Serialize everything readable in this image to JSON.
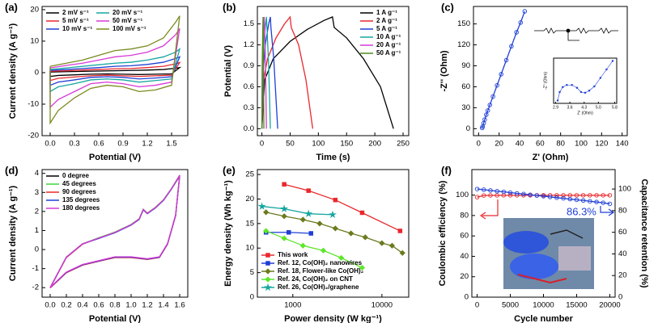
{
  "chart_data": [
    {
      "type": "line",
      "panel_label": "(a)",
      "xlabel": "Potential (V)",
      "ylabel": "Current density (A g⁻¹)",
      "xlim": [
        -0.1,
        1.7
      ],
      "xticks": [
        {
          "value": 0,
          "label": "0.0"
        },
        0.3,
        0.6,
        0.9,
        1.2,
        1.5
      ],
      "ylim": [
        -20,
        21
      ],
      "yticks": [
        -20,
        -10,
        0,
        10,
        20
      ],
      "legend": "upper left",
      "x": [
        0,
        0.2,
        0.4,
        0.6,
        0.8,
        1.0,
        1.2,
        1.4,
        1.55,
        1.6,
        1.5,
        1.3,
        1.1,
        0.9,
        0.7,
        0.5,
        0.3,
        0.1,
        0,
        0
      ],
      "series": [
        {
          "name": "2 mV s⁻¹",
          "color": "#000000",
          "values": [
            0.2,
            0.3,
            0.4,
            0.5,
            0.6,
            0.7,
            0.8,
            1,
            1.4,
            1.6,
            -0.4,
            -0.5,
            -0.6,
            -0.5,
            -0.4,
            -0.5,
            -0.7,
            -0.9,
            -1.2,
            0.2
          ]
        },
        {
          "name": "5 mV s⁻¹",
          "color": "#e8282d",
          "values": [
            0.4,
            0.6,
            0.8,
            1,
            1.2,
            1.3,
            1.6,
            2,
            2.8,
            3.2,
            -0.8,
            -1,
            -1.2,
            -1,
            -0.8,
            -1,
            -1.4,
            -1.8,
            -2.5,
            0.4
          ]
        },
        {
          "name": "10 mV s⁻¹",
          "color": "#1f3fd6",
          "values": [
            0.7,
            1,
            1.3,
            1.6,
            2,
            2.2,
            2.6,
            3.3,
            4.5,
            5,
            -1.3,
            -1.7,
            -2,
            -1.5,
            -1.3,
            -1.5,
            -2.3,
            -3,
            -4,
            0.7
          ]
        },
        {
          "name": "20 mV s⁻¹",
          "color": "#16a6a0",
          "values": [
            1,
            1.5,
            2,
            2.5,
            3,
            3.3,
            4,
            5,
            6.5,
            7.5,
            -2,
            -2.5,
            -3,
            -2.3,
            -2,
            -2.3,
            -3.5,
            -4.5,
            -6,
            1
          ]
        },
        {
          "name": "50 mV s⁻¹",
          "color": "#d63ad6",
          "values": [
            1.5,
            2.3,
            3,
            4,
            5,
            5.5,
            6.5,
            8.5,
            12,
            14,
            -3,
            -4,
            -4.5,
            -3.5,
            -3,
            -3.5,
            -6,
            -8.5,
            -11,
            1.5
          ]
        },
        {
          "name": "100 mV s⁻¹",
          "color": "#7a8a1e",
          "values": [
            2,
            3,
            4,
            5.5,
            7,
            7.5,
            8.5,
            11,
            16,
            18,
            -4,
            -5.5,
            -6,
            -4.5,
            -4,
            -5,
            -8,
            -12,
            -16,
            2
          ]
        }
      ]
    },
    {
      "type": "line",
      "panel_label": "(b)",
      "xlabel": "Time (s)",
      "ylabel": "Potential (V)",
      "xlim": [
        -8,
        260
      ],
      "xticks": [
        0,
        50,
        100,
        150,
        200,
        250
      ],
      "ylim": [
        -0.1,
        1.75
      ],
      "yticks": [
        {
          "value": 0,
          "label": "0.0"
        },
        0.3,
        0.6,
        0.9,
        1.2,
        1.5
      ],
      "legend": "upper right",
      "series": [
        {
          "name": "1 A g⁻¹",
          "color": "#000000",
          "x": [
            0,
            5,
            20,
            50,
            80,
            110,
            125,
            128,
            150,
            180,
            210,
            233
          ],
          "values": [
            0,
            0.7,
            1.0,
            1.25,
            1.42,
            1.55,
            1.6,
            1.45,
            1.3,
            1.0,
            0.6,
            0
          ]
        },
        {
          "name": "2 A g⁻¹",
          "color": "#e8282d",
          "x": [
            0,
            3,
            10,
            25,
            40,
            50,
            52,
            65,
            78,
            90
          ],
          "values": [
            0,
            0.7,
            1.0,
            1.3,
            1.5,
            1.6,
            1.45,
            1.2,
            0.7,
            0
          ]
        },
        {
          "name": "5 A g⁻¹",
          "color": "#1f3fd6",
          "x": [
            0,
            2,
            6,
            12,
            15,
            16,
            21,
            28
          ],
          "values": [
            0,
            0.8,
            1.2,
            1.5,
            1.6,
            1.45,
            1.0,
            0
          ]
        },
        {
          "name": "10 A g⁻¹",
          "color": "#16a6a0",
          "x": [
            0,
            1,
            4,
            8,
            9,
            12,
            15
          ],
          "values": [
            0,
            0.8,
            1.3,
            1.6,
            1.45,
            0.9,
            0
          ]
        },
        {
          "name": "20 A g⁻¹",
          "color": "#d63ad6",
          "x": [
            0,
            1,
            3,
            4,
            5,
            6.5,
            8
          ],
          "values": [
            0,
            0.9,
            1.4,
            1.6,
            1.45,
            0.9,
            0
          ]
        },
        {
          "name": "50 A g⁻¹",
          "color": "#4f8a1e",
          "x": [
            0,
            0.5,
            1.5,
            2,
            2.3,
            3,
            3.5
          ],
          "values": [
            0,
            0.9,
            1.4,
            1.6,
            1.45,
            0.8,
            0
          ]
        }
      ]
    },
    {
      "type": "line",
      "panel_label": "(c)",
      "xlabel": "Z' (Ohm)",
      "ylabel": "-Z'' (Ohm)",
      "xlim": [
        -5,
        145
      ],
      "xticks": [
        0,
        20,
        40,
        60,
        80,
        100,
        120,
        140
      ],
      "ylim": [
        -10,
        175
      ],
      "yticks": [
        0,
        30,
        60,
        90,
        120,
        150
      ],
      "series": [
        {
          "color": "#1f3fd6",
          "marker": "circle",
          "hollow": true,
          "x": [
            3.5,
            4,
            5,
            6,
            7.5,
            9,
            11,
            14,
            18,
            22,
            27,
            32,
            37,
            41,
            45
          ],
          "values": [
            1,
            3,
            8,
            13,
            20,
            26,
            34,
            46,
            62,
            78,
            98,
            118,
            138,
            152,
            168
          ]
        }
      ]
    },
    {
      "type": "line",
      "panel_label": "(d)",
      "xlabel": "Potential (V)",
      "ylabel": "Current density (A g⁻¹)",
      "xlim": [
        -0.1,
        1.7
      ],
      "xticks": [
        {
          "value": 0,
          "label": "0.0"
        },
        0.2,
        0.4,
        0.6,
        0.8,
        {
          "value": 1,
          "label": "1.0"
        },
        1.2,
        1.4,
        1.6
      ],
      "ylim": [
        -2.5,
        4.2
      ],
      "yticks": [
        -2,
        -1,
        0,
        1,
        2,
        3,
        4
      ],
      "legend": "upper left",
      "x": [
        0,
        0.1,
        0.2,
        0.4,
        0.6,
        0.8,
        1.0,
        1.1,
        1.15,
        1.2,
        1.3,
        1.4,
        1.5,
        1.6,
        1.55,
        1.45,
        1.35,
        1.2,
        1.0,
        0.8,
        0.6,
        0.4,
        0.2,
        0.1,
        0
      ],
      "series": [
        {
          "name": "0 degree",
          "color": "#000000",
          "values": [
            -2,
            -1.2,
            -0.4,
            0.3,
            0.6,
            0.9,
            1.3,
            1.6,
            2.1,
            1.9,
            2.2,
            2.6,
            3.2,
            3.9,
            1.8,
            0.3,
            -0.4,
            -0.5,
            -0.4,
            -0.4,
            -0.6,
            -0.8,
            -1.2,
            -1.6,
            -2
          ]
        },
        {
          "name": "45 degrees",
          "color": "#3fd63a",
          "values": [
            -2,
            -1.2,
            -0.4,
            0.3,
            0.62,
            0.92,
            1.32,
            1.62,
            2.12,
            1.92,
            2.22,
            2.62,
            3.22,
            3.9,
            1.8,
            0.3,
            -0.4,
            -0.5,
            -0.42,
            -0.42,
            -0.6,
            -0.8,
            -1.2,
            -1.6,
            -2
          ]
        },
        {
          "name": "90 degrees",
          "color": "#e8282d",
          "values": [
            -2.02,
            -1.22,
            -0.42,
            0.28,
            0.6,
            0.9,
            1.3,
            1.6,
            2.1,
            1.9,
            2.2,
            2.6,
            3.2,
            3.85,
            1.78,
            0.28,
            -0.42,
            -0.52,
            -0.42,
            -0.42,
            -0.62,
            -0.82,
            -1.22,
            -1.62,
            -2.02
          ]
        },
        {
          "name": "135 degrees",
          "color": "#1f3fd6",
          "values": [
            -2,
            -1.2,
            -0.4,
            0.3,
            0.58,
            0.88,
            1.28,
            1.58,
            2.08,
            1.88,
            2.18,
            2.58,
            3.18,
            3.88,
            1.8,
            0.3,
            -0.4,
            -0.5,
            -0.4,
            -0.4,
            -0.6,
            -0.8,
            -1.2,
            -1.6,
            -2
          ]
        },
        {
          "name": "180 degrees",
          "color": "#d63ad6",
          "values": [
            -2,
            -1.2,
            -0.4,
            0.3,
            0.6,
            0.9,
            1.3,
            1.6,
            2.1,
            1.9,
            2.2,
            2.6,
            3.2,
            3.9,
            1.82,
            0.32,
            -0.38,
            -0.48,
            -0.38,
            -0.38,
            -0.58,
            -0.78,
            -1.18,
            -1.58,
            -2
          ]
        }
      ]
    },
    {
      "type": "line",
      "panel_label": "(e)",
      "xlabel": "Power density (W kg⁻¹)",
      "ylabel": "Energy density (Wh kg⁻¹)",
      "xscale": "log",
      "xlim": [
        400,
        20000
      ],
      "xticks": [
        1000,
        10000
      ],
      "ylim": [
        0,
        26
      ],
      "yticks": [
        0,
        5,
        10,
        15,
        20,
        25
      ],
      "legend": "lower left",
      "series": [
        {
          "name": "This work",
          "color": "#e8282d",
          "marker": "square",
          "x": [
            800,
            1500,
            3000,
            6000,
            16000
          ],
          "values": [
            23,
            21.7,
            19.8,
            17.2,
            13.5
          ]
        },
        {
          "name": "Ref. 12, Co(OH)₂ nanowires",
          "color": "#1f3fd6",
          "marker": "square",
          "x": [
            500,
            900,
            1600
          ],
          "values": [
            13.2,
            13.2,
            13
          ]
        },
        {
          "name": "Ref. 18, Flower-like Co(OH)₂",
          "color": "#6b7a1e",
          "marker": "diamond",
          "x": [
            500,
            800,
            1300,
            2000,
            3000,
            4500,
            6500,
            10000,
            13000,
            17000
          ],
          "values": [
            17.3,
            16.5,
            15.8,
            15,
            14,
            13,
            12.2,
            11,
            10.5,
            9
          ]
        },
        {
          "name": "Ref. 24, Co(OH)₂ on CNT",
          "color": "#5ee62a",
          "marker": "diamond",
          "x": [
            500,
            800,
            1300,
            2200,
            3500,
            6000
          ],
          "values": [
            13.5,
            12,
            10.5,
            9.5,
            8,
            6
          ]
        },
        {
          "name": "Ref. 26, Co(OH)₂/graphene",
          "color": "#16a6a0",
          "marker": "star",
          "x": [
            450,
            800,
            1500,
            2800
          ],
          "values": [
            18.5,
            18,
            17,
            16.8
          ]
        }
      ]
    },
    {
      "type": "line",
      "panel_label": "(f)",
      "xlabel": "Cycle number",
      "ylabel": "Coulombic efficiency (%)",
      "y2label": "Capacitance retention (%)",
      "xlim": [
        -800,
        20800
      ],
      "xticks": [
        0,
        5000,
        10000,
        15000,
        20000
      ],
      "ylim": [
        0,
        125
      ],
      "yticks": [
        0,
        20,
        40,
        60,
        80,
        100
      ],
      "y2lim": [
        0,
        118
      ],
      "y2ticks": [
        0,
        20,
        40,
        60,
        80,
        100
      ],
      "annotation": "86.3%",
      "x": [
        0,
        1000,
        2000,
        3000,
        4000,
        5000,
        6000,
        7000,
        8000,
        9000,
        10000,
        11000,
        12000,
        13000,
        14000,
        15000,
        16000,
        17000,
        18000,
        19000,
        20000
      ],
      "series": [
        {
          "color": "#e8282d",
          "marker": "circle",
          "hollow": true,
          "values": [
            98,
            99.6,
            99.7,
            99.7,
            99.8,
            99.8,
            99.8,
            99.8,
            99.8,
            99.8,
            99.8,
            99.8,
            99.8,
            99.8,
            99.8,
            99.8,
            99.8,
            99.8,
            99.8,
            99.8,
            99.8
          ]
        },
        {
          "color": "#1f3fd6",
          "marker": "circle",
          "hollow": true,
          "axis": "y2",
          "values": [
            100,
            99.4,
            98.7,
            98,
            97.4,
            96.7,
            96,
            95.4,
            94.7,
            94,
            93.4,
            92.7,
            92,
            91.4,
            90.7,
            90,
            89.4,
            88.7,
            88,
            87.3,
            86.3
          ]
        }
      ]
    },
    {
      "type": "line",
      "xlabel": "Z' (Ohm)",
      "ylabel": "-Z'' (Ohm)",
      "xlim": [
        2.8,
        5.9
      ],
      "xticks": [
        2.9,
        3.6,
        4.3,
        {
          "value": 5,
          "label": "5.0"
        },
        5.8
      ],
      "ylim": [
        0,
        3.2
      ],
      "series": [
        {
          "color": "#1f3fd6",
          "marker": "circle",
          "x": [
            3.0,
            3.1,
            3.25,
            3.45,
            3.7,
            3.95,
            4.15,
            4.35,
            4.55,
            4.8,
            5.1,
            5.4,
            5.7
          ],
          "values": [
            0.2,
            0.8,
            1.15,
            1.3,
            1.3,
            1.1,
            0.8,
            0.75,
            0.9,
            1.2,
            1.8,
            2.4,
            3.0
          ]
        }
      ]
    }
  ]
}
